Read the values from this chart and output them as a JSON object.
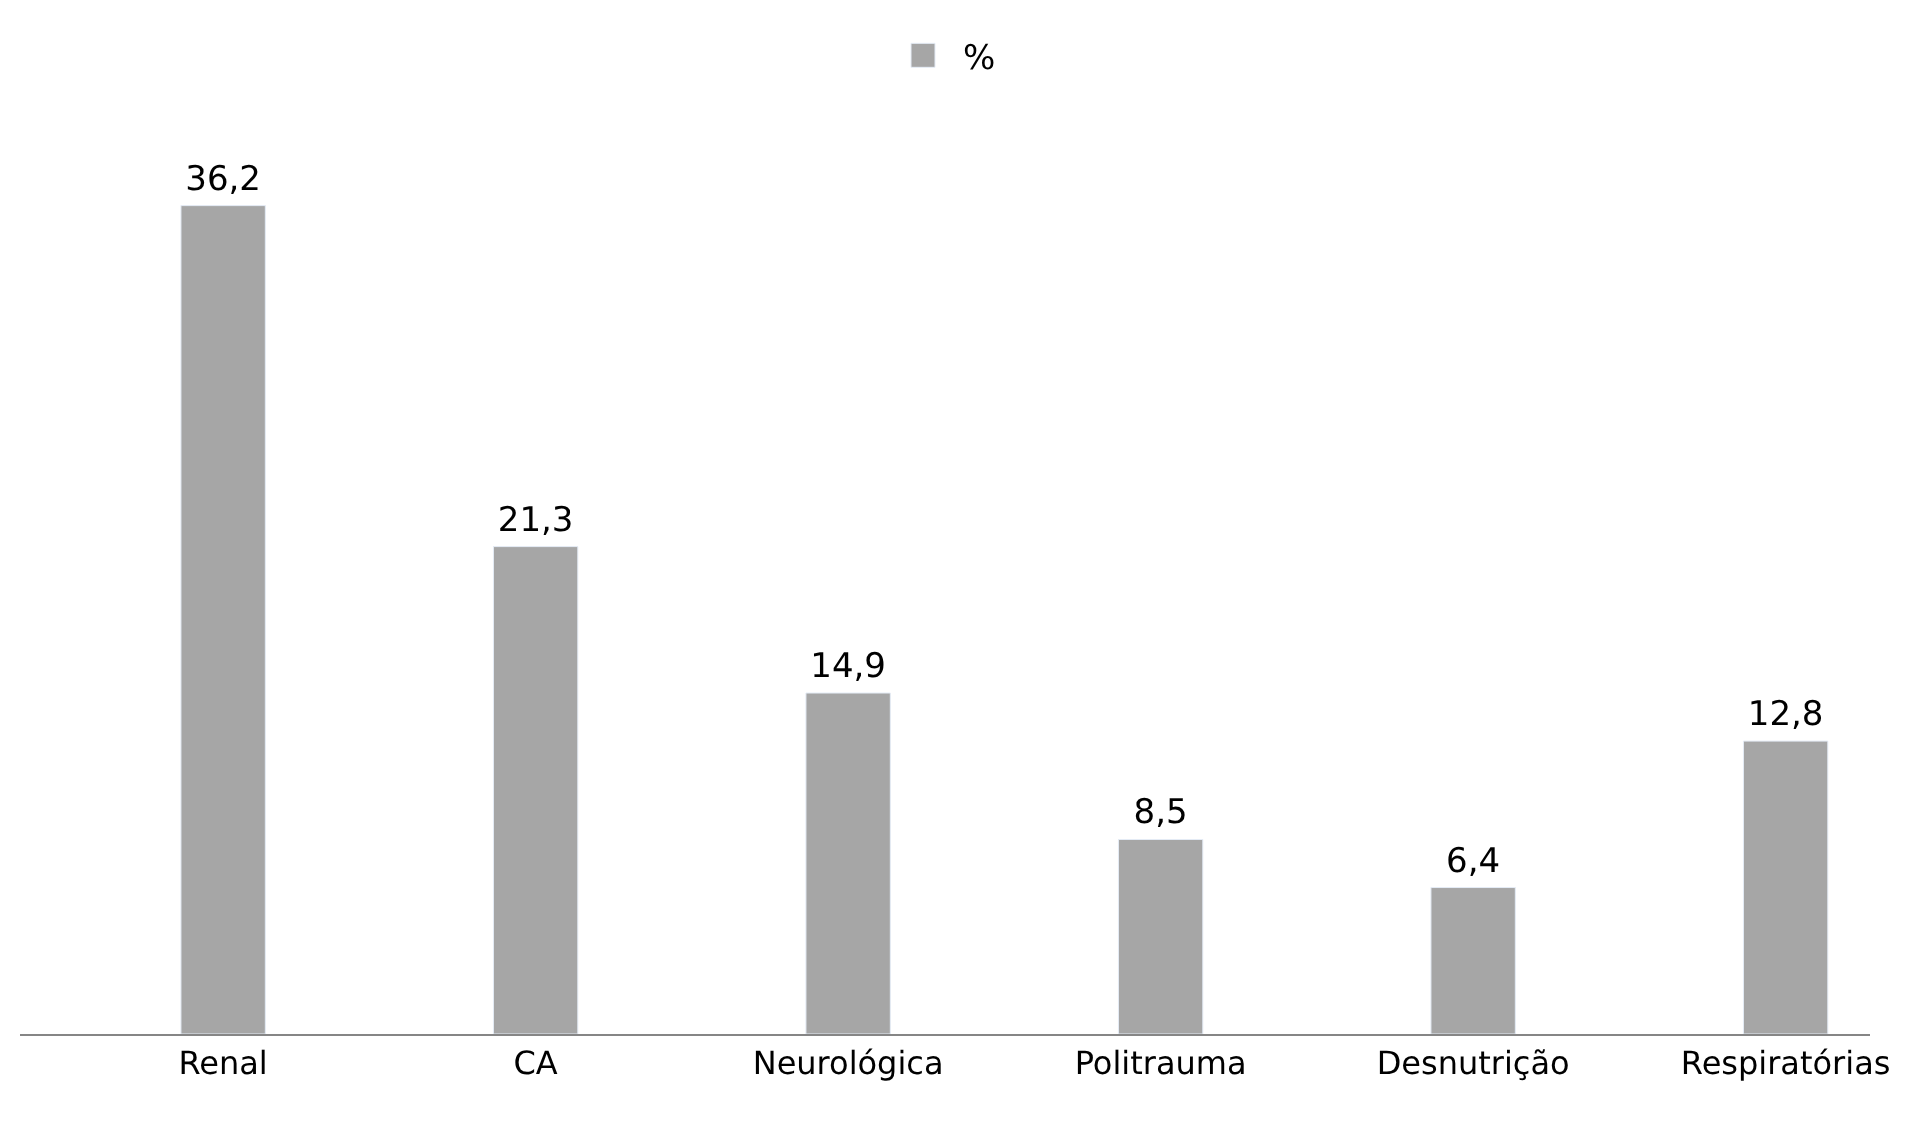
{
  "chart_data": {
    "type": "bar",
    "categories": [
      "Renal",
      "CA",
      "Neurológica",
      "Politrauma",
      "Desnutrição",
      "Respiratórias"
    ],
    "series": [
      {
        "name": "%",
        "color": "#a6a6a6",
        "values": [
          36.2,
          21.3,
          14.9,
          8.5,
          6.4,
          12.8
        ],
        "value_labels": [
          "36,2",
          "21,3",
          "14,9",
          "8,5",
          "6,4",
          "12,8"
        ]
      }
    ],
    "legend": "top",
    "tick_labels": "x"
  }
}
